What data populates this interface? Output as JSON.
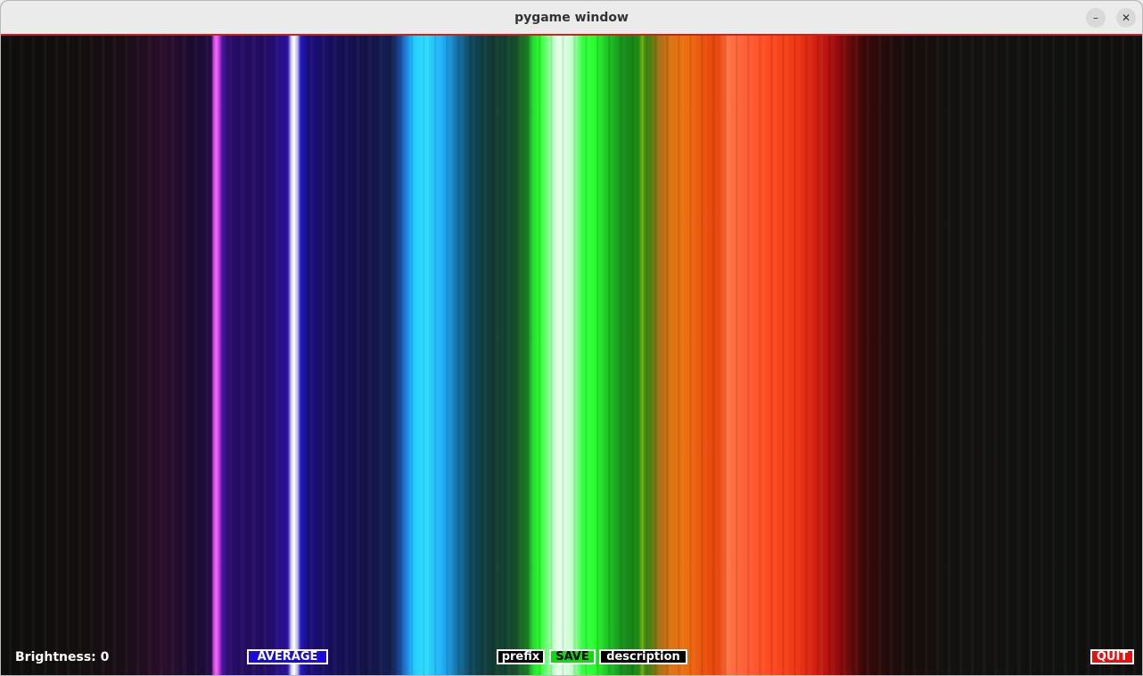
{
  "window": {
    "title": "pygame window",
    "minimize_symbol": "–",
    "close_symbol": "✕"
  },
  "status": {
    "brightness": "Brightness: 0"
  },
  "buttons": {
    "average": "AVERAGE",
    "prefix": "prefix",
    "save": "SAVE",
    "description": "description",
    "quit": "QUIT"
  },
  "colors": {
    "titlebar_accent": "#c5281b",
    "average_button": "#1a0bd8",
    "save_button": "#12d812",
    "quit_button": "#e81010"
  },
  "icons": [
    "minimize-icon",
    "close-icon"
  ]
}
